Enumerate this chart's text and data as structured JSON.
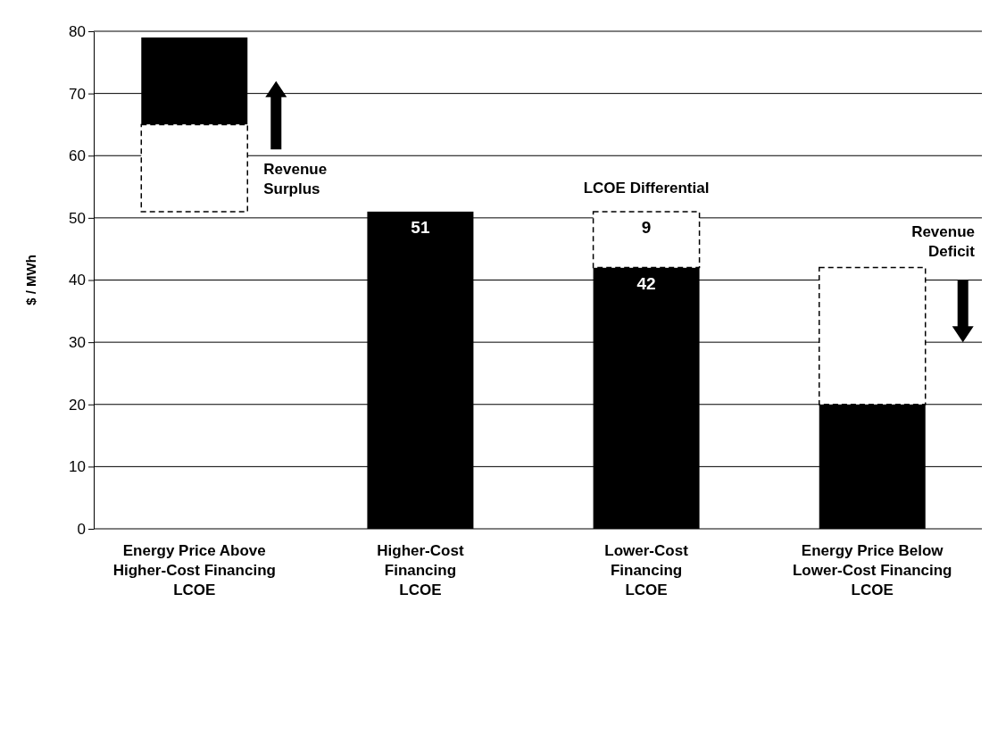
{
  "chart_data": {
    "type": "bar",
    "ylabel": "$ / MWh",
    "categories": [
      "Energy Price Above Higher-Cost Financing LCOE",
      "Higher-Cost Financing LCOE",
      "Lower-Cost Financing LCOE",
      "Energy Price Below Lower-Cost Financing LCOE"
    ],
    "series": [
      {
        "color": "#000000",
        "values": [
          14,
          51,
          42,
          20
        ],
        "base": [
          65,
          0,
          0,
          0
        ],
        "value_labels": [
          null,
          "51",
          "42",
          null
        ]
      },
      {
        "color": "#ffffff",
        "values": [
          14,
          null,
          9,
          22
        ],
        "base": [
          51,
          null,
          42,
          20
        ],
        "line_style": "dashed",
        "value_labels": [
          null,
          null,
          "9",
          null
        ]
      }
    ],
    "ylim": [
      0,
      80
    ],
    "yticks": [
      0,
      10,
      20,
      30,
      40,
      50,
      60,
      70,
      80
    ],
    "grid": "y",
    "annotations": [
      "Revenue Surplus",
      "LCOE Differential",
      "Revenue Deficit"
    ]
  }
}
